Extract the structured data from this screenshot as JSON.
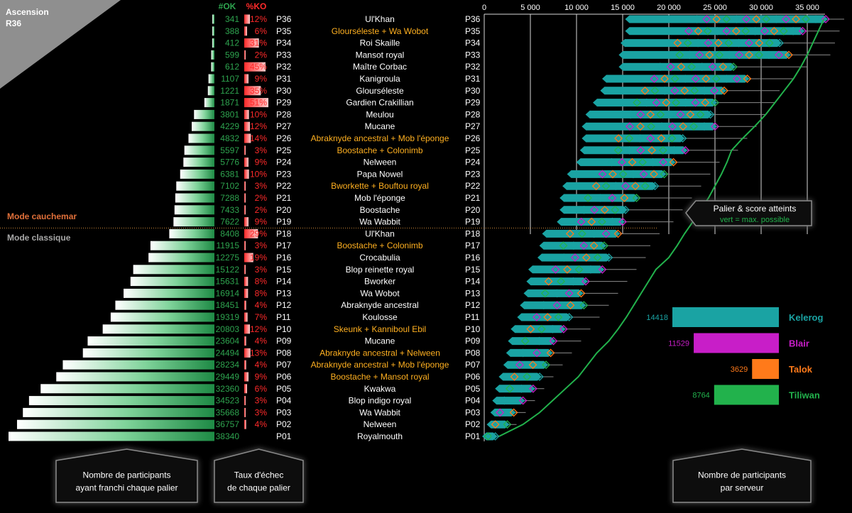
{
  "header": {
    "title": "Ascension",
    "subtitle": "R36"
  },
  "modes": {
    "hard": "Mode cauchemar",
    "classic": "Mode classique"
  },
  "column_headers": {
    "ok": "#OK",
    "ko": "%KO"
  },
  "note_box": {
    "line1": "Palier & score atteints",
    "line2": "vert = max. possible"
  },
  "captions": {
    "left": [
      "Nombre de participants",
      "ayant franchi chaque palier"
    ],
    "middle": [
      "Taux d'échec",
      "de chaque palier"
    ],
    "right": [
      "Nombre de participants",
      "par serveur"
    ]
  },
  "colors": {
    "kelerog": "#1aa3a3",
    "blair": "#c81ec8",
    "talok": "#ff7a1a",
    "tiliwan": "#22b24c",
    "ok_green": "#2ea44f",
    "ko_red": "#ff2a2a",
    "duo_gold": "#ffb020"
  },
  "chart_data": [
    {
      "type": "bar",
      "title": "Nombre de participants ayant franchi chaque palier / Taux d'échec de chaque palier",
      "paliers": [
        {
          "p": "P36",
          "ok": 341,
          "ko": "12%",
          "boss": "Ul'Khan",
          "duo": false
        },
        {
          "p": "P35",
          "ok": 388,
          "ko": "6%",
          "boss": "Glourséleste + Wa Wobot",
          "duo": true
        },
        {
          "p": "P34",
          "ok": 412,
          "ko": "31%",
          "boss": "Roi Skaille",
          "duo": false
        },
        {
          "p": "P33",
          "ok": 599,
          "ko": "2%",
          "boss": "Mansot royal",
          "duo": false
        },
        {
          "p": "P32",
          "ok": 612,
          "ko": "45%",
          "boss": "Maître Corbac",
          "duo": false
        },
        {
          "p": "P31",
          "ok": 1107,
          "ko": "9%",
          "boss": "Kanigroula",
          "duo": false
        },
        {
          "p": "P30",
          "ok": 1221,
          "ko": "35%",
          "boss": "Glourséleste",
          "duo": false
        },
        {
          "p": "P29",
          "ok": 1871,
          "ko": "51%",
          "boss": "Gardien Crakillian",
          "duo": false
        },
        {
          "p": "P28",
          "ok": 3801,
          "ko": "10%",
          "boss": "Meulou",
          "duo": false
        },
        {
          "p": "P27",
          "ok": 4229,
          "ko": "12%",
          "boss": "Mucane",
          "duo": false
        },
        {
          "p": "P26",
          "ok": 4832,
          "ko": "14%",
          "boss": "Abraknyde ancestral + Mob l'éponge",
          "duo": true
        },
        {
          "p": "P25",
          "ok": 5597,
          "ko": "3%",
          "boss": "Boostache + Colonimb",
          "duo": true
        },
        {
          "p": "P24",
          "ok": 5776,
          "ko": "9%",
          "boss": "Nelween",
          "duo": false
        },
        {
          "p": "P23",
          "ok": 6381,
          "ko": "10%",
          "boss": "Papa Nowel",
          "duo": false
        },
        {
          "p": "P22",
          "ok": 7102,
          "ko": "3%",
          "boss": "Bworkette + Bouftou royal",
          "duo": true
        },
        {
          "p": "P21",
          "ok": 7288,
          "ko": "2%",
          "boss": "Mob l'éponge",
          "duo": false
        },
        {
          "p": "P20",
          "ok": 7433,
          "ko": "2%",
          "boss": "Boostache",
          "duo": false
        },
        {
          "p": "P19",
          "ok": 7622,
          "ko": "9%",
          "boss": "Wa Wabbit",
          "duo": false
        },
        {
          "p": "P18",
          "ok": 8408,
          "ko": "29%",
          "boss": "Ul'Khan",
          "duo": false
        },
        {
          "p": "P17",
          "ok": 11915,
          "ko": "3%",
          "boss": "Boostache + Colonimb",
          "duo": true
        },
        {
          "p": "P16",
          "ok": 12275,
          "ko": "19%",
          "boss": "Crocabulia",
          "duo": false
        },
        {
          "p": "P15",
          "ok": 15122,
          "ko": "3%",
          "boss": "Blop reinette royal",
          "duo": false
        },
        {
          "p": "P14",
          "ok": 15631,
          "ko": "8%",
          "boss": "Bworker",
          "duo": false
        },
        {
          "p": "P13",
          "ok": 16914,
          "ko": "8%",
          "boss": "Wa Wobot",
          "duo": false
        },
        {
          "p": "P12",
          "ok": 18451,
          "ko": "4%",
          "boss": "Abraknyde ancestral",
          "duo": false
        },
        {
          "p": "P11",
          "ok": 19319,
          "ko": "7%",
          "boss": "Koulosse",
          "duo": false
        },
        {
          "p": "P10",
          "ok": 20803,
          "ko": "12%",
          "boss": "Skeunk + Kanniboul Ebil",
          "duo": true
        },
        {
          "p": "P09",
          "ok": 23604,
          "ko": "4%",
          "boss": "Mucane",
          "duo": false
        },
        {
          "p": "P08",
          "ok": 24494,
          "ko": "13%",
          "boss": "Abraknyde ancestral + Nelween",
          "duo": true
        },
        {
          "p": "P07",
          "ok": 28234,
          "ko": "4%",
          "boss": "Abraknyde ancestral + Mob l'éponge",
          "duo": true
        },
        {
          "p": "P06",
          "ok": 29449,
          "ko": "9%",
          "boss": "Boostache + Mansot royal",
          "duo": true
        },
        {
          "p": "P05",
          "ok": 32360,
          "ko": "6%",
          "boss": "Kwakwa",
          "duo": false
        },
        {
          "p": "P04",
          "ok": 34523,
          "ko": "3%",
          "boss": "Blop indigo royal",
          "duo": false
        },
        {
          "p": "P03",
          "ok": 35668,
          "ko": "3%",
          "boss": "Wa Wabbit",
          "duo": false
        },
        {
          "p": "P02",
          "ok": 36757,
          "ko": "4%",
          "boss": "Nelween",
          "duo": false
        },
        {
          "p": "P01",
          "ok": 38340,
          "ko": "",
          "boss": "Royalmouth",
          "duo": false
        }
      ]
    },
    {
      "type": "scatter",
      "title": "Palier & score atteints",
      "x_ticks": [
        0,
        5000,
        10000,
        15000,
        20000,
        25000,
        30000,
        35000
      ],
      "x_tick_labels": [
        "0",
        "5 000",
        "10 000",
        "15 000",
        "20 000",
        "25 000",
        "30 000",
        "35 000"
      ],
      "xlim": [
        0,
        38500
      ],
      "rows": [
        {
          "p": "P36",
          "min": 15500,
          "max": 37000,
          "line": 39000,
          "maxpossible": 36800
        },
        {
          "p": "P35",
          "min": 15500,
          "max": 34500,
          "line": 38500,
          "maxpossible": 36200
        },
        {
          "p": "P34",
          "min": 15000,
          "max": 32000,
          "line": 38000,
          "maxpossible": 35600
        },
        {
          "p": "P33",
          "min": 14800,
          "max": 33000,
          "line": 37500,
          "maxpossible": 35000
        },
        {
          "p": "P32",
          "min": 14800,
          "max": 27000,
          "line": 35000,
          "maxpossible": 34300
        },
        {
          "p": "P31",
          "min": 13000,
          "max": 28500,
          "line": 33500,
          "maxpossible": 33500
        },
        {
          "p": "P30",
          "min": 12800,
          "max": 26000,
          "line": 32000,
          "maxpossible": 32500
        },
        {
          "p": "P29",
          "min": 12000,
          "max": 25000,
          "line": 31500,
          "maxpossible": 31500
        },
        {
          "p": "P28",
          "min": 11200,
          "max": 24500,
          "line": 30500,
          "maxpossible": 30500
        },
        {
          "p": "P27",
          "min": 10800,
          "max": 25000,
          "line": 29500,
          "maxpossible": 29300
        },
        {
          "p": "P26",
          "min": 10800,
          "max": 21500,
          "line": 28500,
          "maxpossible": 28000
        },
        {
          "p": "P25",
          "min": 10600,
          "max": 21800,
          "line": 27500,
          "maxpossible": 26800
        },
        {
          "p": "P24",
          "min": 10200,
          "max": 20500,
          "line": 25500,
          "maxpossible": 26300
        },
        {
          "p": "P23",
          "min": 9200,
          "max": 19500,
          "line": 24500,
          "maxpossible": 25700
        },
        {
          "p": "P22",
          "min": 8700,
          "max": 18500,
          "line": 23500,
          "maxpossible": 25000
        },
        {
          "p": "P21",
          "min": 8400,
          "max": 16500,
          "line": 22500,
          "maxpossible": 24300
        },
        {
          "p": "P20",
          "min": 8400,
          "max": 15300,
          "line": 21500,
          "maxpossible": 23400
        },
        {
          "p": "P19",
          "min": 8100,
          "max": 15000,
          "line": 20500,
          "maxpossible": 22600
        },
        {
          "p": "P18",
          "min": 6500,
          "max": 14500,
          "line": 19000,
          "maxpossible": 21700
        },
        {
          "p": "P17",
          "min": 6200,
          "max": 13000,
          "line": 18000,
          "maxpossible": 20900
        },
        {
          "p": "P16",
          "min": 6000,
          "max": 13500,
          "line": 17500,
          "maxpossible": 20000
        },
        {
          "p": "P15",
          "min": 5000,
          "max": 12800,
          "line": 16500,
          "maxpossible": 18600
        },
        {
          "p": "P14",
          "min": 4800,
          "max": 11000,
          "line": 15500,
          "maxpossible": 17800
        },
        {
          "p": "P13",
          "min": 4500,
          "max": 10500,
          "line": 14500,
          "maxpossible": 17000
        },
        {
          "p": "P12",
          "min": 4100,
          "max": 10800,
          "line": 13500,
          "maxpossible": 16200
        },
        {
          "p": "P11",
          "min": 3800,
          "max": 9200,
          "line": 12500,
          "maxpossible": 15400
        },
        {
          "p": "P10",
          "min": 3100,
          "max": 8600,
          "line": 11500,
          "maxpossible": 14500
        },
        {
          "p": "P09",
          "min": 2800,
          "max": 7500,
          "line": 10500,
          "maxpossible": 13500
        },
        {
          "p": "P08",
          "min": 2600,
          "max": 7200,
          "line": 9500,
          "maxpossible": 12200
        },
        {
          "p": "P07",
          "min": 2300,
          "max": 6700,
          "line": 8500,
          "maxpossible": 11200
        },
        {
          "p": "P06",
          "min": 1800,
          "max": 6000,
          "line": 7500,
          "maxpossible": 10200
        },
        {
          "p": "P05",
          "min": 1400,
          "max": 5300,
          "line": 6500,
          "maxpossible": 8800
        },
        {
          "p": "P04",
          "min": 1100,
          "max": 4200,
          "line": 5500,
          "maxpossible": 7400
        },
        {
          "p": "P03",
          "min": 900,
          "max": 3200,
          "line": 4500,
          "maxpossible": 6000
        },
        {
          "p": "P02",
          "min": 500,
          "max": 2500,
          "line": 3500,
          "maxpossible": 4200
        },
        {
          "p": "P01",
          "min": 0,
          "max": 1200,
          "line": 1500,
          "maxpossible": 1600
        }
      ]
    },
    {
      "type": "bar",
      "title": "Nombre de participants par serveur",
      "servers": [
        {
          "name": "Kelerog",
          "value": 14418,
          "color": "#1aa3a3"
        },
        {
          "name": "Blair",
          "value": 11529,
          "color": "#c81ec8"
        },
        {
          "name": "Talok",
          "value": 3629,
          "color": "#ff7a1a"
        },
        {
          "name": "Tiliwan",
          "value": 8764,
          "color": "#22b24c"
        }
      ]
    }
  ]
}
